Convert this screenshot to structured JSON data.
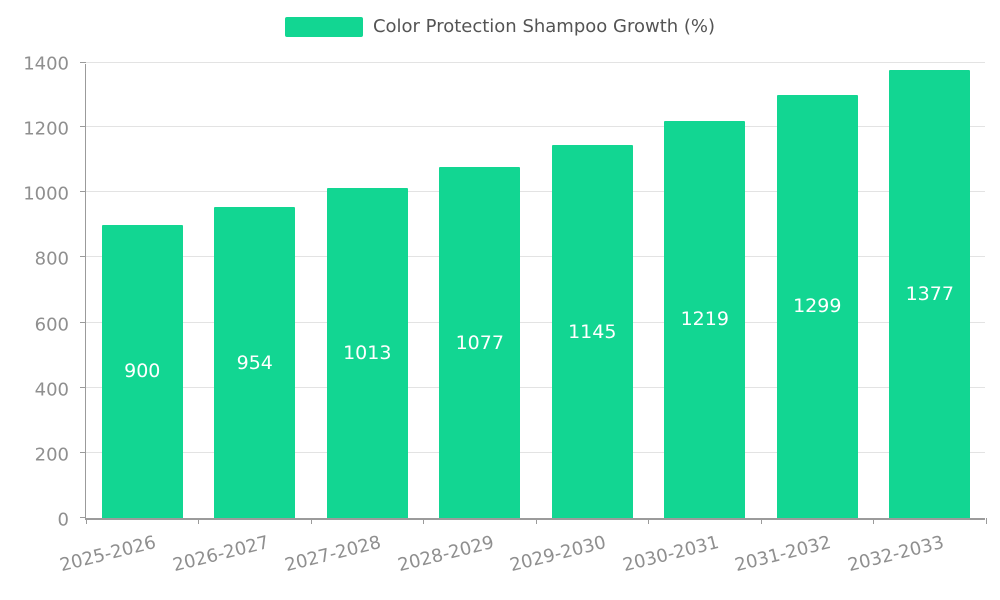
{
  "colors": {
    "bar": "#12d692",
    "grid": "#e3e3e3",
    "axis": "#9b9b9b",
    "tick_text": "#8f8f8f",
    "legend_text": "#545454",
    "value_text": "#ffffff",
    "background": "#ffffff"
  },
  "chart_data": {
    "type": "bar",
    "title": "Color Protection Shampoo Growth (%)",
    "categories": [
      "2025-2026",
      "2026-2027",
      "2027-2028",
      "2028-2029",
      "2029-2030",
      "2030-2031",
      "2031-2032",
      "2032-2033"
    ],
    "values": [
      900,
      954,
      1013,
      1077,
      1145,
      1219,
      1299,
      1377
    ],
    "xlabel": "",
    "ylabel": "",
    "ylim": [
      0,
      1400
    ],
    "yticks": [
      0,
      200,
      400,
      600,
      800,
      1000,
      1200,
      1400
    ],
    "grid": true,
    "legend_position": "top",
    "value_labels": "inside-center"
  }
}
